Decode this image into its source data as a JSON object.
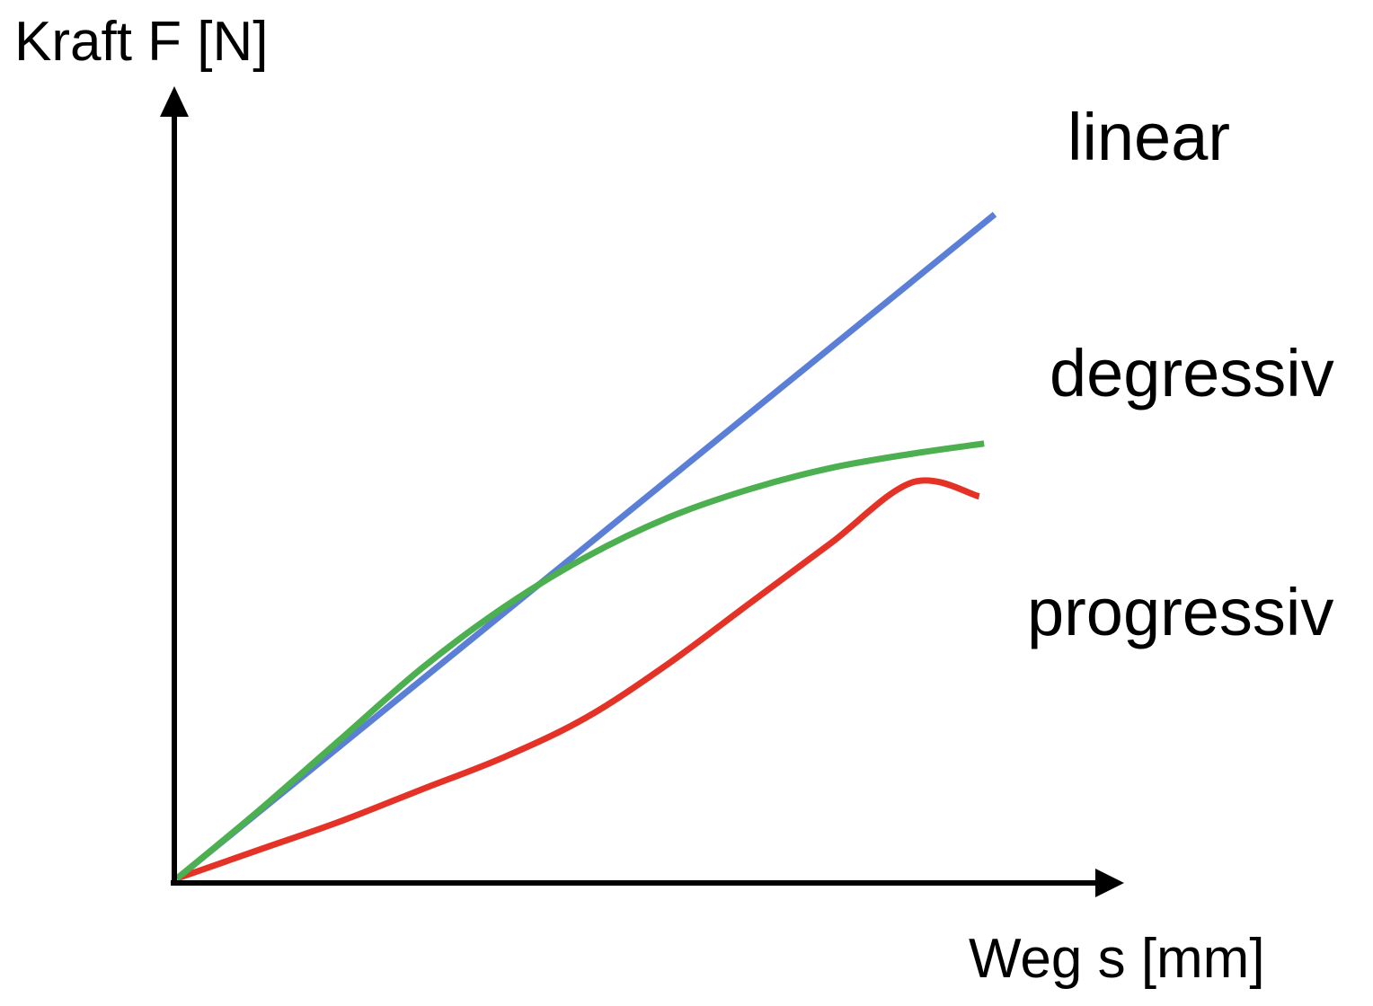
{
  "chart_data": {
    "type": "line",
    "ylabel": "Kraft F [N]",
    "xlabel": "Weg s [mm]",
    "xlim": [
      0,
      100
    ],
    "ylim": [
      0,
      100
    ],
    "grid": false,
    "legend": "right",
    "series": [
      {
        "name": "linear",
        "color": "#5b7fd6",
        "x": [
          0,
          100
        ],
        "y": [
          0,
          93
        ]
      },
      {
        "name": "degressiv",
        "color": "#4caf50",
        "x": [
          0,
          10,
          20,
          30,
          40,
          50,
          60,
          70,
          80,
          90,
          98.7
        ],
        "y": [
          0,
          9.5,
          19.5,
          29.5,
          38,
          45,
          50.5,
          54.5,
          57.5,
          59.5,
          60.9
        ]
      },
      {
        "name": "progressiv",
        "color": "#e53227",
        "x": [
          0,
          10,
          20,
          30,
          40,
          50,
          60,
          70,
          80,
          90,
          98.1
        ],
        "y": [
          0,
          4,
          8,
          12.5,
          17,
          22.5,
          30,
          38.5,
          47,
          55.5,
          53.5
        ]
      }
    ]
  }
}
